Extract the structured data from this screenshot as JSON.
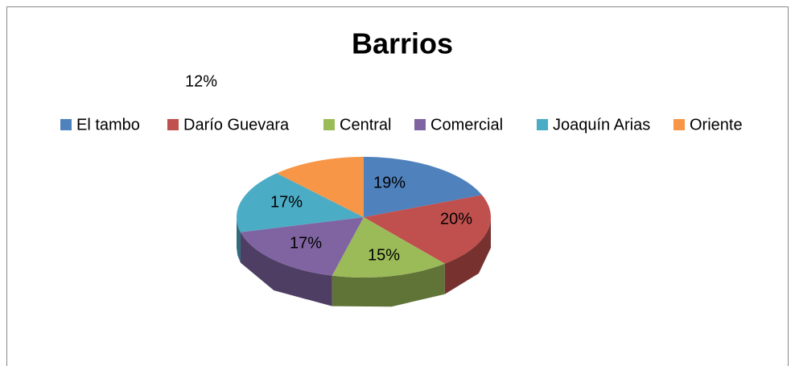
{
  "chart_data": {
    "type": "pie",
    "title": "Barrios",
    "categories": [
      "El tambo",
      "Darío Guevara",
      "Central",
      "Comercial",
      "Joaquín Arias",
      "Oriente"
    ],
    "values": [
      19,
      20,
      15,
      17,
      17,
      12
    ],
    "value_labels": [
      "19%",
      "20%",
      "15%",
      "17%",
      "17%",
      "12%"
    ],
    "colors": [
      "#4F81BD",
      "#C0504D",
      "#9BBB59",
      "#8064A2",
      "#4BACC6",
      "#F79646"
    ],
    "legend": "top"
  }
}
